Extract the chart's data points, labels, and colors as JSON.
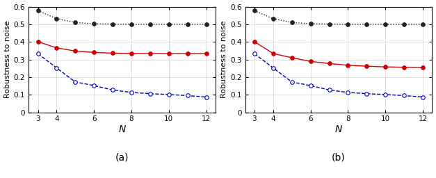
{
  "N": [
    3,
    4,
    5,
    6,
    7,
    8,
    9,
    10,
    11,
    12
  ],
  "plot_a": {
    "black": [
      0.577,
      0.532,
      0.51,
      0.503,
      0.501,
      0.5,
      0.5,
      0.5,
      0.5,
      0.5
    ],
    "red": [
      0.401,
      0.366,
      0.348,
      0.34,
      0.336,
      0.334,
      0.334,
      0.333,
      0.333,
      0.333
    ],
    "blue": [
      0.333,
      0.252,
      0.172,
      0.152,
      0.127,
      0.113,
      0.106,
      0.101,
      0.095,
      0.087
    ]
  },
  "plot_b": {
    "black": [
      0.577,
      0.532,
      0.51,
      0.503,
      0.501,
      0.5,
      0.5,
      0.5,
      0.5,
      0.5
    ],
    "red": [
      0.401,
      0.334,
      0.31,
      0.289,
      0.277,
      0.267,
      0.262,
      0.258,
      0.256,
      0.254
    ],
    "blue": [
      0.333,
      0.252,
      0.172,
      0.152,
      0.127,
      0.113,
      0.106,
      0.101,
      0.095,
      0.087
    ]
  },
  "ylim": [
    0,
    0.6
  ],
  "yticks": [
    0,
    0.1,
    0.2,
    0.3,
    0.4,
    0.5,
    0.6
  ],
  "xtick_positions": [
    3,
    4,
    6,
    8,
    10,
    12
  ],
  "xtick_labels": [
    "3",
    "4",
    "6",
    "8",
    "10",
    "12"
  ],
  "xlim": [
    2.5,
    12.5
  ],
  "xlabel": "$N$",
  "ylabel": "Robustness to noise",
  "label_a": "(a)",
  "label_b": "(b)",
  "black_color": "#222222",
  "red_color": "#cc0000",
  "blue_color": "#0000bb",
  "grid_color": "#d0d0d0",
  "linewidth": 1.0,
  "markersize": 4.0
}
